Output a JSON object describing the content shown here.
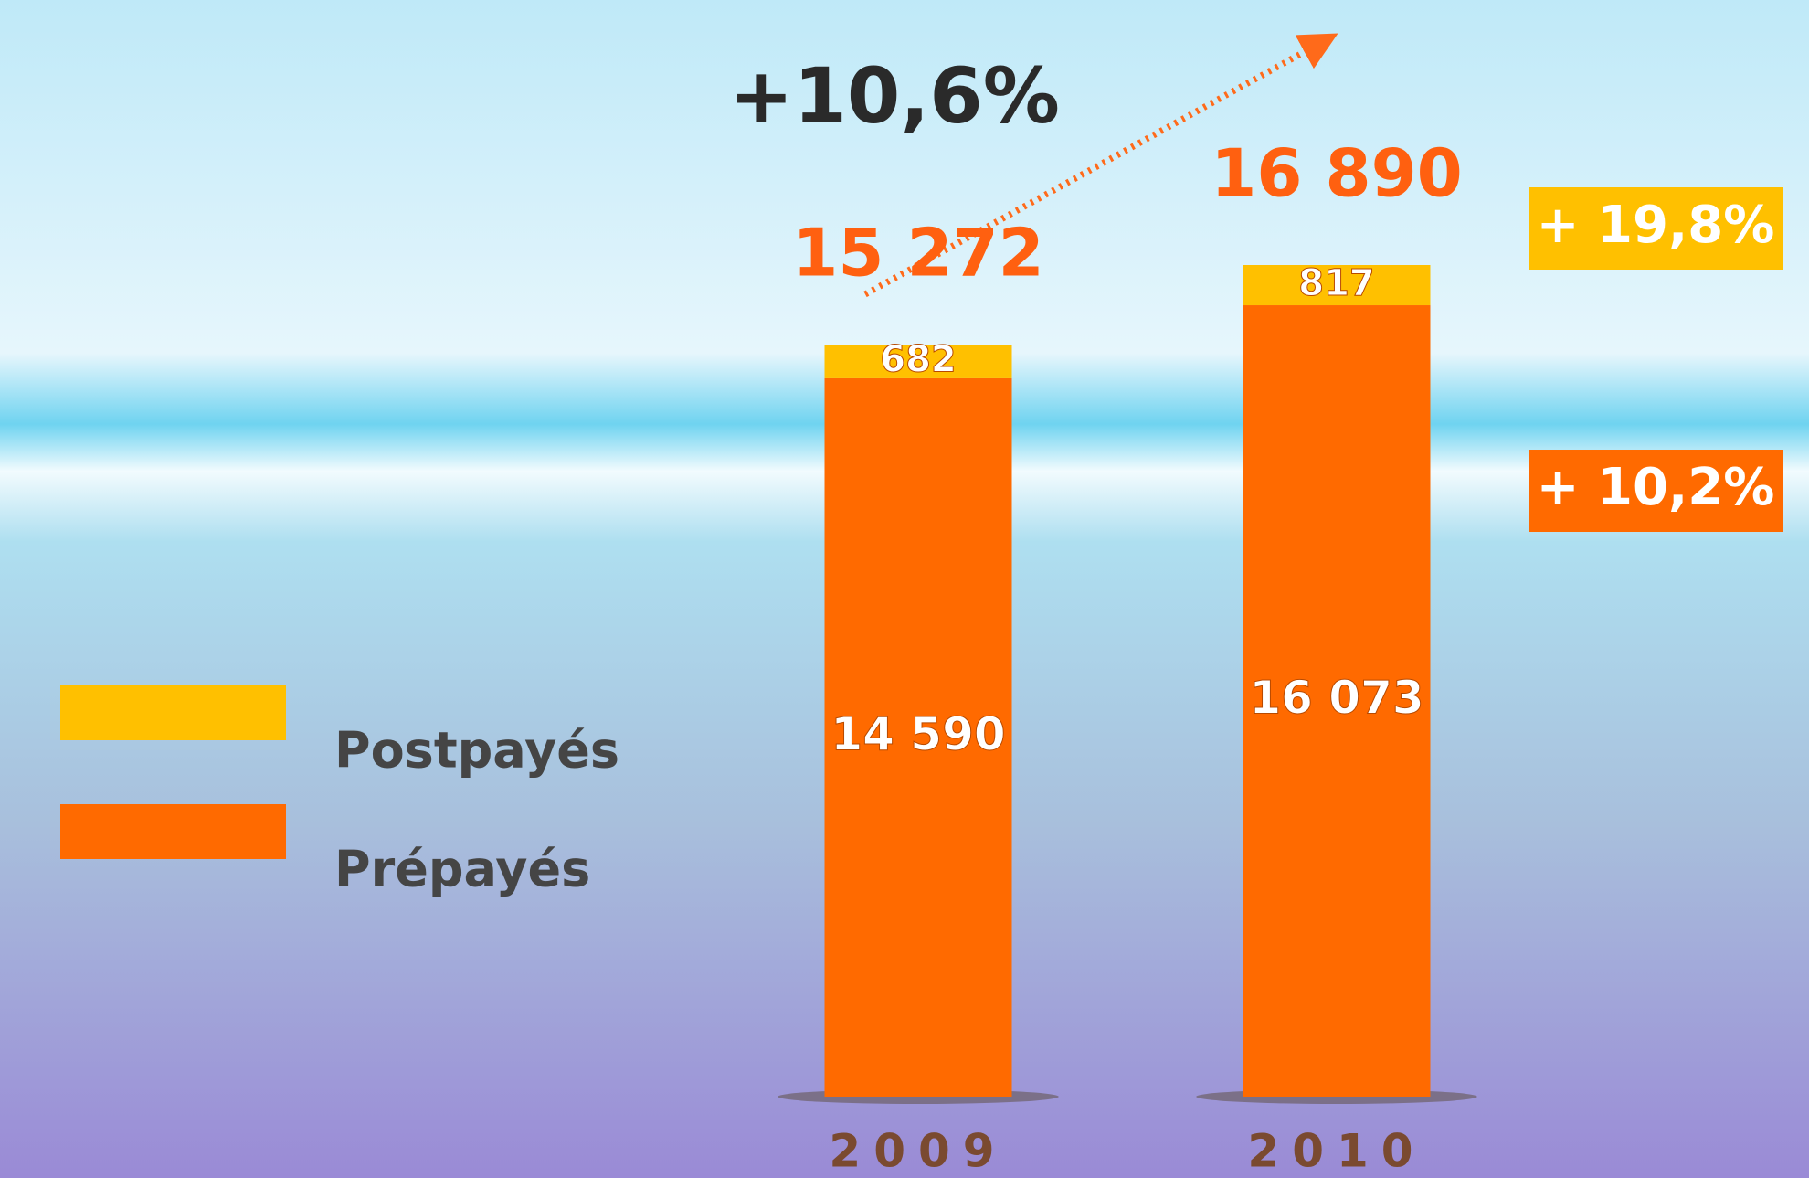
{
  "chart_data": {
    "type": "bar",
    "stacked": true,
    "annotation": "+10,6%",
    "categories": [
      "2009",
      "2010"
    ],
    "totals": [
      15272,
      16890
    ],
    "total_labels": [
      "15 272",
      "16 890"
    ],
    "series": [
      {
        "name": "Prépayés",
        "color": "#ff6a00",
        "values": [
          14590,
          16073
        ],
        "value_labels": [
          "14 590",
          "16 073"
        ],
        "change_label": "+ 10,2%"
      },
      {
        "name": "Postpayés",
        "color": "#ffc000",
        "values": [
          682,
          817
        ],
        "change_label": "+ 19,8%"
      }
    ]
  }
}
